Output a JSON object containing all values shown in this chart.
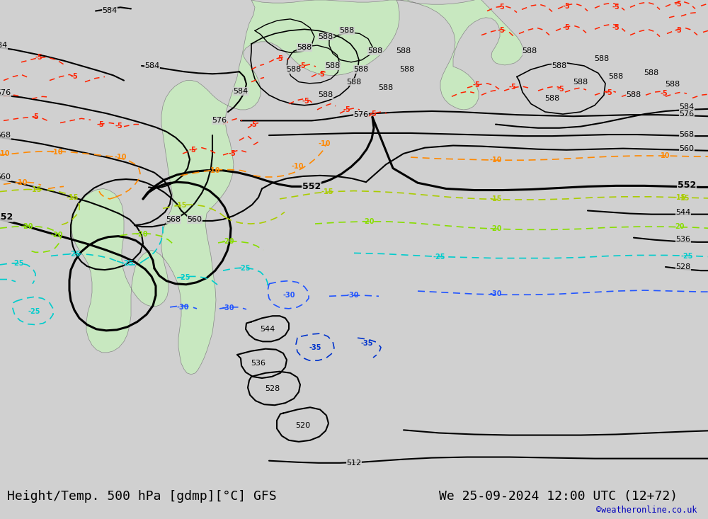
{
  "title_left": "Height/Temp. 500 hPa [gdmp][°C] GFS",
  "title_right": "We 25-09-2024 12:00 UTC (12+72)",
  "credit": "©weatheronline.co.uk",
  "bg_color": "#d0d0d0",
  "ocean_color": "#d0d0d0",
  "land_color": "#c8e8c0",
  "font_size_title": 13,
  "dpi": 100,
  "figsize": [
    10.0,
    7.33
  ]
}
